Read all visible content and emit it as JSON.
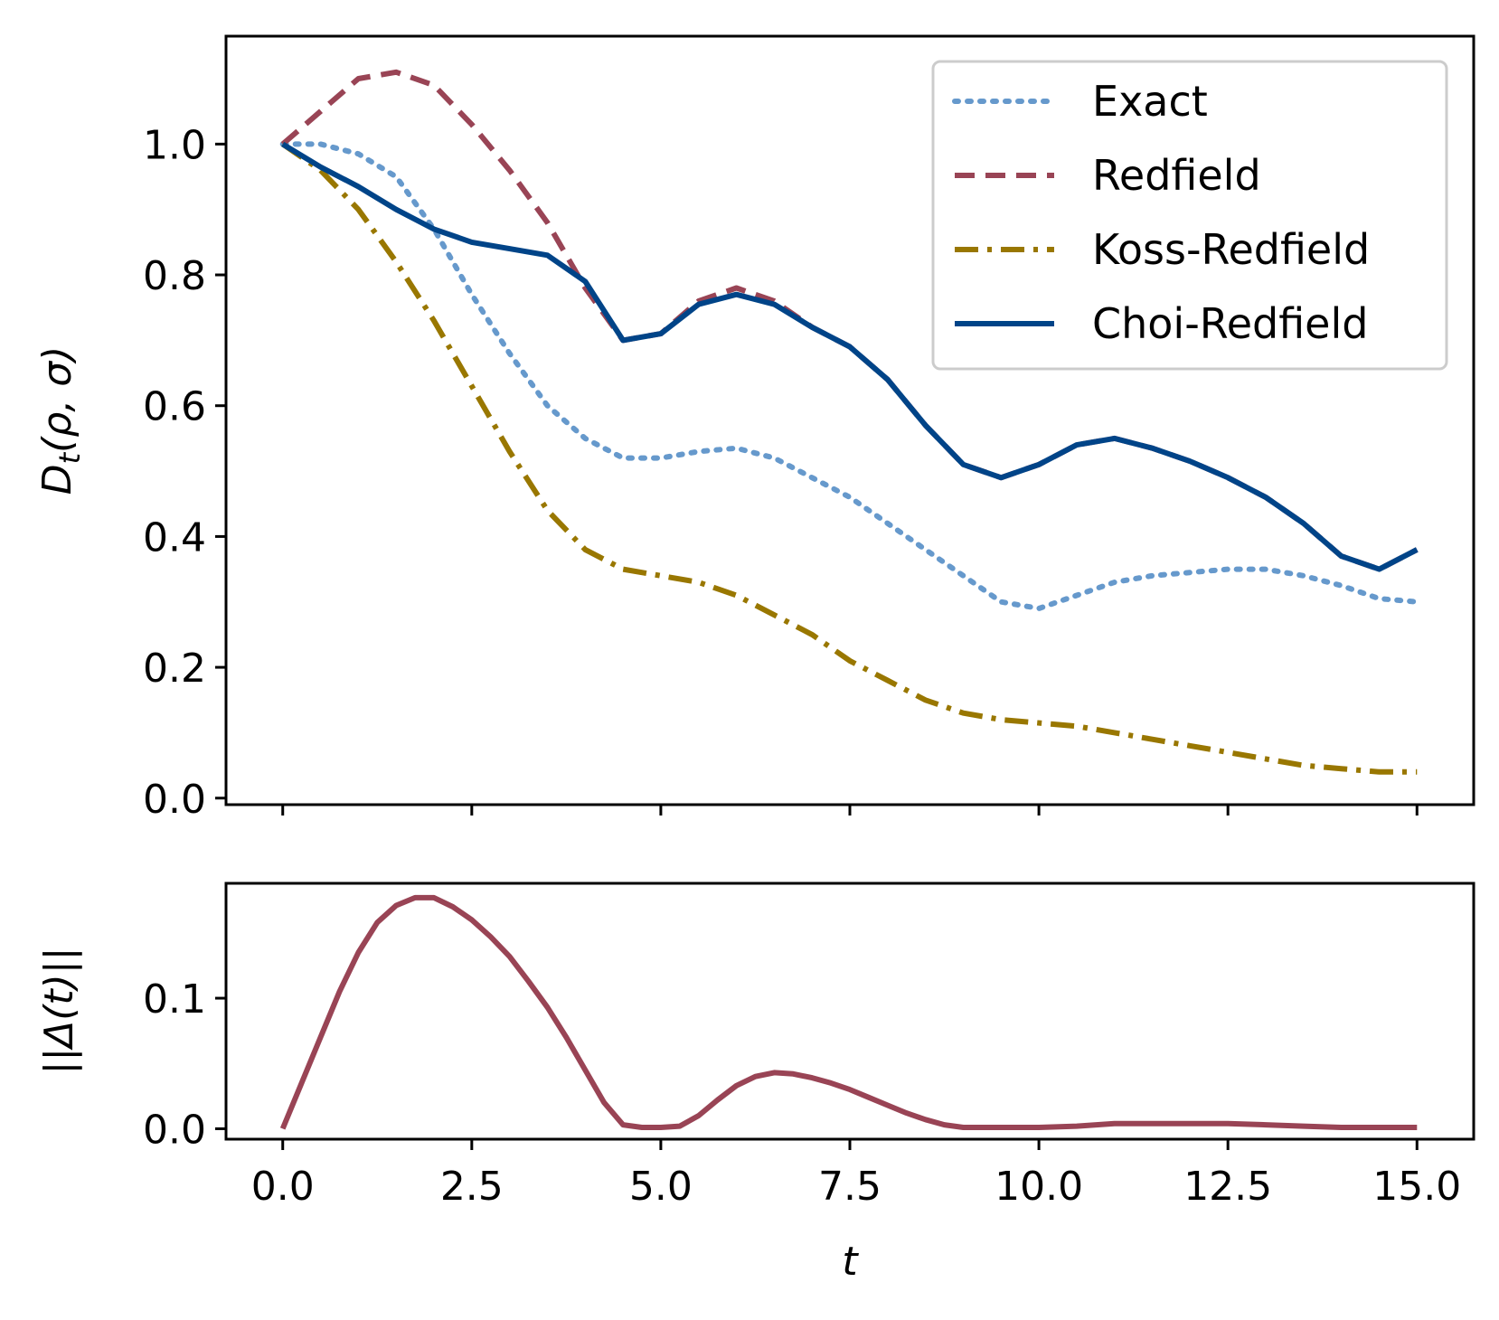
{
  "chart_data": [
    {
      "type": "line",
      "panel": "top",
      "title": "",
      "xlabel": "",
      "ylabel": "D_t(ρ, σ)",
      "ylabel_main": "D",
      "ylabel_sub": "t",
      "ylabel_args": "(ρ, σ)",
      "xlim": [
        -0.75,
        15.75
      ],
      "ylim": [
        -0.01,
        1.165
      ],
      "xticks": [
        0,
        2.5,
        5,
        7.5,
        10,
        12.5,
        15
      ],
      "yticks": [
        0.0,
        0.2,
        0.4,
        0.6,
        0.8,
        1.0
      ],
      "ytick_labels": [
        "0.0",
        "0.2",
        "0.4",
        "0.6",
        "0.8",
        "1.0"
      ],
      "grid": false,
      "legend_position": "top-right",
      "series": [
        {
          "name": "Exact",
          "color": "#6699cc",
          "style": "dotted",
          "x": [
            0,
            0.5,
            1,
            1.5,
            2,
            2.5,
            3,
            3.5,
            4,
            4.5,
            5,
            5.5,
            6,
            6.5,
            7,
            7.5,
            8,
            8.5,
            9,
            9.5,
            10,
            10.5,
            11,
            11.5,
            12,
            12.5,
            13,
            13.5,
            14,
            14.5,
            15
          ],
          "values": [
            1.0,
            1.0,
            0.985,
            0.95,
            0.87,
            0.77,
            0.68,
            0.6,
            0.55,
            0.52,
            0.52,
            0.53,
            0.535,
            0.52,
            0.49,
            0.46,
            0.42,
            0.38,
            0.34,
            0.3,
            0.29,
            0.31,
            0.33,
            0.34,
            0.345,
            0.35,
            0.35,
            0.34,
            0.325,
            0.305,
            0.3
          ]
        },
        {
          "name": "Redfield",
          "color": "#994455",
          "style": "dashed",
          "x": [
            0,
            0.5,
            1,
            1.5,
            2,
            2.5,
            3,
            3.5,
            4,
            4.5,
            5,
            5.5,
            6,
            6.5,
            7,
            7.5,
            8,
            8.5,
            9,
            9.5,
            10,
            10.5,
            11,
            11.5,
            12,
            12.5,
            13,
            13.5,
            14,
            14.5,
            15
          ],
          "values": [
            1.0,
            1.05,
            1.1,
            1.11,
            1.09,
            1.03,
            0.96,
            0.88,
            0.78,
            0.7,
            0.71,
            0.76,
            0.78,
            0.76,
            0.72,
            0.69,
            0.64,
            0.57,
            0.51,
            0.49,
            0.51,
            0.54,
            0.55,
            0.535,
            0.515,
            0.49,
            0.46,
            0.42,
            0.37,
            0.35,
            0.38
          ]
        },
        {
          "name": "Koss-Redfield",
          "color": "#997700",
          "style": "dashdot",
          "x": [
            0,
            0.5,
            1,
            1.5,
            2,
            2.5,
            3,
            3.5,
            4,
            4.5,
            5,
            5.5,
            6,
            6.5,
            7,
            7.5,
            8,
            8.5,
            9,
            9.5,
            10,
            10.5,
            11,
            11.5,
            12,
            12.5,
            13,
            13.5,
            14,
            14.5,
            15
          ],
          "values": [
            1.0,
            0.96,
            0.9,
            0.82,
            0.73,
            0.63,
            0.53,
            0.44,
            0.38,
            0.35,
            0.34,
            0.33,
            0.31,
            0.28,
            0.25,
            0.21,
            0.18,
            0.15,
            0.13,
            0.12,
            0.115,
            0.11,
            0.1,
            0.09,
            0.08,
            0.07,
            0.06,
            0.05,
            0.045,
            0.04,
            0.04
          ]
        },
        {
          "name": "Choi-Redfield",
          "color": "#004488",
          "style": "solid",
          "x": [
            0,
            0.5,
            1,
            1.5,
            2,
            2.5,
            3,
            3.5,
            4,
            4.5,
            5,
            5.5,
            6,
            6.5,
            7,
            7.5,
            8,
            8.5,
            9,
            9.5,
            10,
            10.5,
            11,
            11.5,
            12,
            12.5,
            13,
            13.5,
            14,
            14.5,
            15
          ],
          "values": [
            1.0,
            0.965,
            0.935,
            0.9,
            0.87,
            0.85,
            0.84,
            0.83,
            0.79,
            0.7,
            0.71,
            0.755,
            0.77,
            0.755,
            0.72,
            0.69,
            0.64,
            0.57,
            0.51,
            0.49,
            0.51,
            0.54,
            0.55,
            0.535,
            0.515,
            0.49,
            0.46,
            0.42,
            0.37,
            0.35,
            0.38
          ]
        }
      ]
    },
    {
      "type": "line",
      "panel": "bottom",
      "title": "",
      "xlabel": "t",
      "ylabel": "||Δ(t)||",
      "xlim": [
        -0.75,
        15.75
      ],
      "ylim": [
        -0.008,
        0.188
      ],
      "xticks": [
        0,
        2.5,
        5,
        7.5,
        10,
        12.5,
        15
      ],
      "xtick_labels": [
        "0.0",
        "2.5",
        "5.0",
        "7.5",
        "10.0",
        "12.5",
        "15.0"
      ],
      "yticks": [
        0.0,
        0.1
      ],
      "ytick_labels": [
        "0.0",
        "0.1"
      ],
      "grid": false,
      "series": [
        {
          "name": "||Δ(t)||",
          "color": "#994455",
          "style": "solid",
          "x": [
            0,
            0.25,
            0.5,
            0.75,
            1,
            1.25,
            1.5,
            1.75,
            2,
            2.25,
            2.5,
            2.75,
            3,
            3.25,
            3.5,
            3.75,
            4,
            4.25,
            4.5,
            4.75,
            5,
            5.25,
            5.5,
            5.75,
            6,
            6.25,
            6.5,
            6.75,
            7,
            7.25,
            7.5,
            7.75,
            8,
            8.25,
            8.5,
            8.75,
            9,
            9.5,
            10,
            10.5,
            11,
            11.5,
            12,
            12.5,
            13,
            13.5,
            14,
            14.5,
            15
          ],
          "values": [
            0.0,
            0.035,
            0.07,
            0.105,
            0.135,
            0.158,
            0.171,
            0.177,
            0.177,
            0.17,
            0.16,
            0.147,
            0.132,
            0.113,
            0.093,
            0.07,
            0.045,
            0.02,
            0.003,
            0.001,
            0.001,
            0.002,
            0.01,
            0.022,
            0.033,
            0.04,
            0.043,
            0.042,
            0.039,
            0.035,
            0.03,
            0.024,
            0.018,
            0.012,
            0.007,
            0.003,
            0.001,
            0.001,
            0.001,
            0.002,
            0.004,
            0.004,
            0.004,
            0.004,
            0.003,
            0.002,
            0.001,
            0.001,
            0.001
          ]
        }
      ]
    }
  ]
}
